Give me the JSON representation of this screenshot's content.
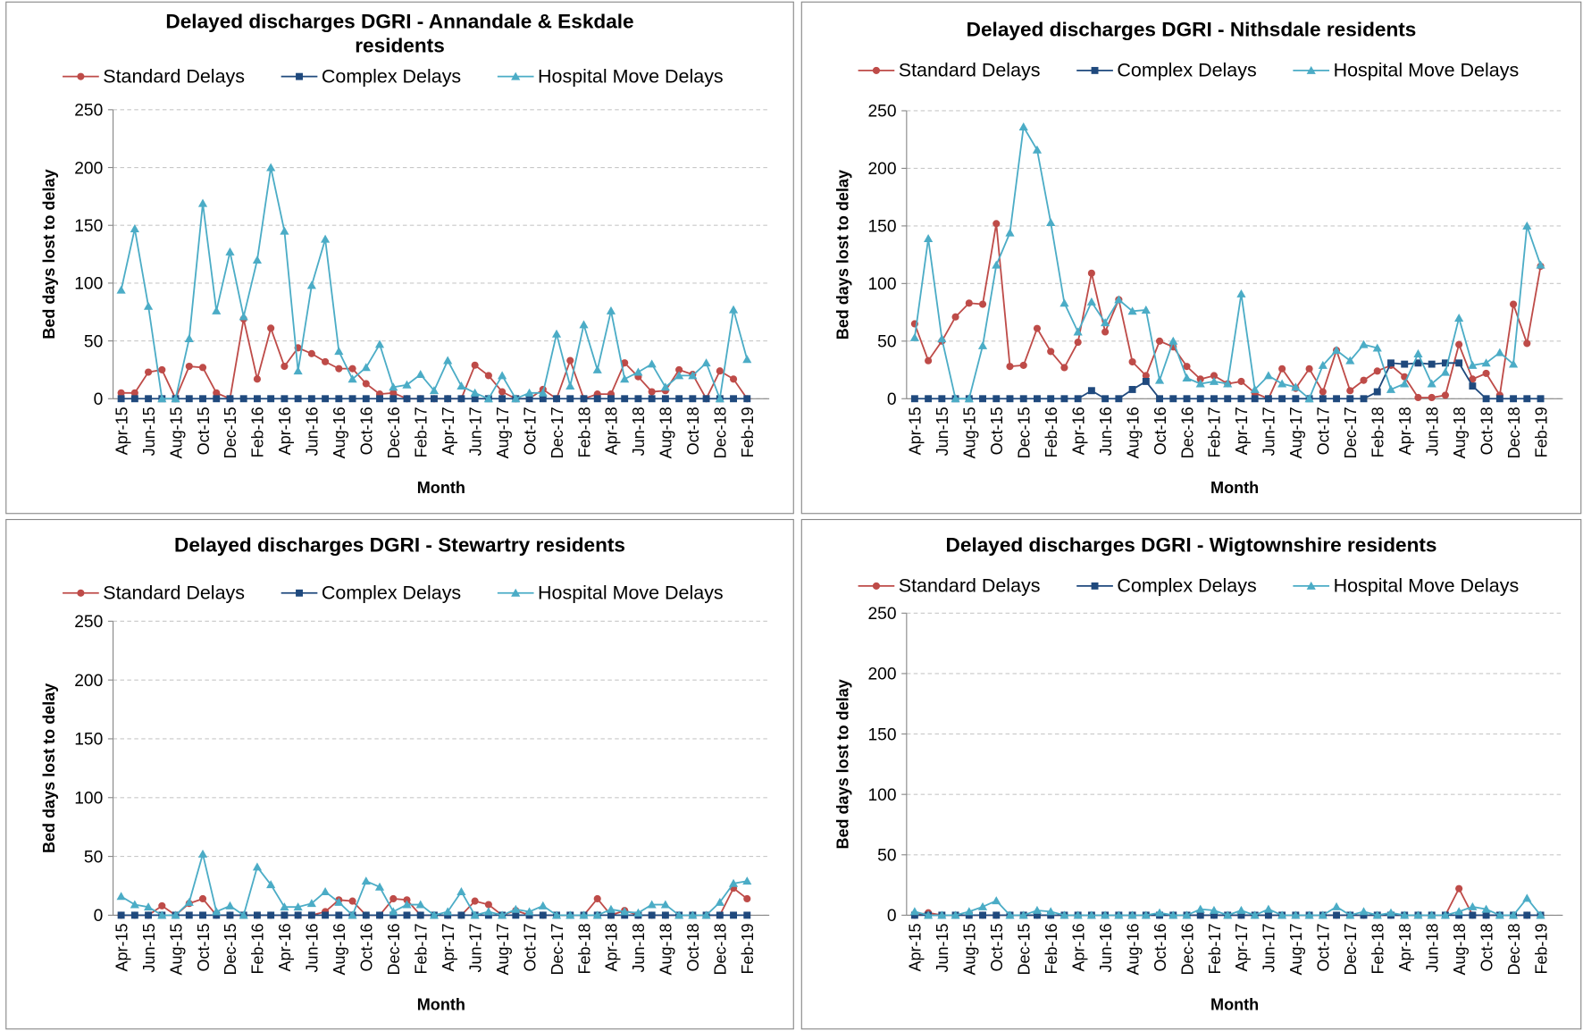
{
  "chart_data": [
    {
      "type": "line",
      "title": "Delayed discharges DGRI - Annandale & Eskdale residents",
      "x_label": "Month",
      "y_label": "Bed days lost to delay",
      "legend": "top",
      "grid": true,
      "categories": [
        "Apr-15",
        null,
        "Jun-15",
        null,
        "Aug-15",
        null,
        "Oct-15",
        null,
        "Dec-15",
        null,
        "Feb-16",
        null,
        "Apr-16",
        null,
        "Jun-16",
        null,
        "Aug-16",
        null,
        "Oct-16",
        null,
        "Dec-16",
        null,
        "Feb-17",
        null,
        "Apr-17",
        null,
        "Jun-17",
        null,
        "Aug-17",
        null,
        "Oct-17",
        null,
        "Dec-17",
        null,
        "Feb-18",
        null,
        "Apr-18",
        null,
        "Jun-18",
        null,
        "Aug-18",
        null,
        "Oct-18",
        null,
        "Dec-18",
        null,
        "Feb-19"
      ],
      "ylim": [
        0,
        250
      ],
      "yticks": [
        0,
        50,
        100,
        150,
        200,
        250
      ],
      "series": [
        {
          "name": "Standard Delays",
          "color": "#be4b48",
          "marker": "circle",
          "values": [
            5,
            5,
            23,
            25,
            0,
            28,
            27,
            5,
            0,
            69,
            17,
            61,
            28,
            44,
            39,
            32,
            26,
            26,
            13,
            4,
            5,
            0,
            0,
            0,
            0,
            0,
            29,
            20,
            6,
            0,
            0,
            8,
            0,
            33,
            0,
            4,
            4,
            31,
            19,
            6,
            7,
            25,
            21,
            0,
            24,
            17,
            0
          ]
        },
        {
          "name": "Complex Delays",
          "color": "#1f497d",
          "marker": "square",
          "values": [
            0,
            0,
            0,
            0,
            0,
            0,
            0,
            0,
            0,
            0,
            0,
            0,
            0,
            0,
            0,
            0,
            0,
            0,
            0,
            0,
            0,
            0,
            0,
            0,
            0,
            0,
            0,
            0,
            0,
            0,
            0,
            0,
            0,
            0,
            0,
            0,
            0,
            0,
            0,
            0,
            0,
            0,
            0,
            0,
            0,
            0,
            0
          ]
        },
        {
          "name": "Hospital Move Delays",
          "color": "#4bacc6",
          "marker": "triangle",
          "values": [
            94,
            147,
            80,
            0,
            0,
            52,
            169,
            76,
            127,
            71,
            120,
            200,
            145,
            24,
            98,
            138,
            41,
            17,
            27,
            47,
            10,
            12,
            21,
            7,
            33,
            11,
            5,
            0,
            20,
            0,
            5,
            5,
            56,
            11,
            64,
            25,
            76,
            17,
            23,
            30,
            10,
            20,
            20,
            31,
            0,
            77,
            34
          ]
        }
      ]
    },
    {
      "type": "line",
      "title": "Delayed discharges DGRI - Nithsdale residents",
      "x_label": "Month",
      "y_label": "Bed days lost to delay",
      "legend": "top",
      "grid": true,
      "categories": [
        "Apr-15",
        null,
        "Jun-15",
        null,
        "Aug-15",
        null,
        "Oct-15",
        null,
        "Dec-15",
        null,
        "Feb-16",
        null,
        "Apr-16",
        null,
        "Jun-16",
        null,
        "Aug-16",
        null,
        "Oct-16",
        null,
        "Dec-16",
        null,
        "Feb-17",
        null,
        "Apr-17",
        null,
        "Jun-17",
        null,
        "Aug-17",
        null,
        "Oct-17",
        null,
        "Dec-17",
        null,
        "Feb-18",
        null,
        "Apr-18",
        null,
        "Jun-18",
        null,
        "Aug-18",
        null,
        "Oct-18",
        null,
        "Dec-18",
        null,
        "Feb-19"
      ],
      "ylim": [
        0,
        250
      ],
      "yticks": [
        0,
        50,
        100,
        150,
        200,
        250
      ],
      "series": [
        {
          "name": "Standard Delays",
          "color": "#be4b48",
          "marker": "circle",
          "values": [
            65,
            33,
            50,
            71,
            83,
            82,
            152,
            28,
            29,
            61,
            41,
            27,
            49,
            109,
            58,
            86,
            32,
            20,
            50,
            45,
            28,
            17,
            20,
            13,
            15,
            5,
            0,
            26,
            9,
            26,
            6,
            42,
            7,
            16,
            24,
            29,
            19,
            1,
            1,
            3,
            47,
            17,
            22,
            3,
            82,
            48,
            115
          ]
        },
        {
          "name": "Complex Delays",
          "color": "#1f497d",
          "marker": "square",
          "values": [
            0,
            0,
            0,
            0,
            0,
            0,
            0,
            0,
            0,
            0,
            0,
            0,
            0,
            7,
            0,
            0,
            8,
            15,
            0,
            0,
            0,
            0,
            0,
            0,
            0,
            0,
            0,
            0,
            0,
            0,
            0,
            0,
            0,
            0,
            6,
            31,
            30,
            31,
            30,
            31,
            31,
            11,
            0,
            0,
            0,
            0,
            0
          ]
        },
        {
          "name": "Hospital Move Delays",
          "color": "#4bacc6",
          "marker": "triangle",
          "values": [
            53,
            139,
            52,
            0,
            0,
            46,
            116,
            144,
            236,
            216,
            153,
            83,
            58,
            84,
            66,
            86,
            76,
            77,
            16,
            50,
            18,
            13,
            15,
            13,
            91,
            8,
            20,
            13,
            10,
            0,
            29,
            42,
            33,
            47,
            44,
            8,
            13,
            39,
            13,
            23,
            70,
            29,
            31,
            40,
            30,
            150,
            116
          ]
        }
      ]
    },
    {
      "type": "line",
      "title": "Delayed discharges DGRI - Stewartry residents",
      "x_label": "Month",
      "y_label": "Bed days lost to delay",
      "legend": "top",
      "grid": true,
      "categories": [
        "Apr-15",
        null,
        "Jun-15",
        null,
        "Aug-15",
        null,
        "Oct-15",
        null,
        "Dec-15",
        null,
        "Feb-16",
        null,
        "Apr-16",
        null,
        "Jun-16",
        null,
        "Aug-16",
        null,
        "Oct-16",
        null,
        "Dec-16",
        null,
        "Feb-17",
        null,
        "Apr-17",
        null,
        "Jun-17",
        null,
        "Aug-17",
        null,
        "Oct-17",
        null,
        "Dec-17",
        null,
        "Feb-18",
        null,
        "Apr-18",
        null,
        "Jun-18",
        null,
        "Aug-18",
        null,
        "Oct-18",
        null,
        "Dec-18",
        null,
        "Feb-19"
      ],
      "ylim": [
        0,
        250
      ],
      "yticks": [
        0,
        50,
        100,
        150,
        200,
        250
      ],
      "series": [
        {
          "name": "Standard Delays",
          "color": "#be4b48",
          "marker": "circle",
          "values": [
            0,
            0,
            0,
            8,
            0,
            10,
            14,
            0,
            0,
            0,
            0,
            0,
            0,
            0,
            0,
            3,
            13,
            12,
            0,
            0,
            14,
            13,
            0,
            0,
            0,
            0,
            12,
            9,
            0,
            4,
            0,
            0,
            0,
            0,
            0,
            14,
            0,
            4,
            0,
            0,
            0,
            0,
            0,
            0,
            0,
            23,
            14
          ]
        },
        {
          "name": "Complex Delays",
          "color": "#1f497d",
          "marker": "square",
          "values": [
            0,
            0,
            0,
            0,
            0,
            0,
            0,
            0,
            0,
            0,
            0,
            0,
            0,
            0,
            0,
            0,
            0,
            0,
            0,
            0,
            0,
            0,
            0,
            0,
            0,
            0,
            0,
            0,
            0,
            0,
            0,
            0,
            0,
            0,
            0,
            0,
            0,
            0,
            0,
            0,
            0,
            0,
            0,
            0,
            0,
            0,
            0
          ]
        },
        {
          "name": "Hospital Move Delays",
          "color": "#4bacc6",
          "marker": "triangle",
          "values": [
            16,
            9,
            7,
            0,
            0,
            11,
            52,
            3,
            8,
            0,
            41,
            26,
            7,
            7,
            10,
            20,
            11,
            0,
            29,
            24,
            3,
            9,
            9,
            0,
            3,
            20,
            0,
            3,
            0,
            5,
            3,
            8,
            0,
            0,
            0,
            0,
            5,
            3,
            2,
            9,
            9,
            0,
            0,
            0,
            11,
            27,
            29
          ]
        }
      ]
    },
    {
      "type": "line",
      "title": "Delayed discharges DGRI - Wigtownshire residents",
      "x_label": "Month",
      "y_label": "Bed days lost to delay",
      "legend": "top",
      "grid": true,
      "categories": [
        "Apr-15",
        null,
        "Jun-15",
        null,
        "Aug-15",
        null,
        "Oct-15",
        null,
        "Dec-15",
        null,
        "Feb-16",
        null,
        "Apr-16",
        null,
        "Jun-16",
        null,
        "Aug-16",
        null,
        "Oct-16",
        null,
        "Dec-16",
        null,
        "Feb-17",
        null,
        "Apr-17",
        null,
        "Jun-17",
        null,
        "Aug-17",
        null,
        "Oct-17",
        null,
        "Dec-17",
        null,
        "Feb-18",
        null,
        "Apr-18",
        null,
        "Jun-18",
        null,
        "Aug-18",
        null,
        "Oct-18",
        null,
        "Dec-18",
        null,
        "Feb-19"
      ],
      "ylim": [
        0,
        250
      ],
      "yticks": [
        0,
        50,
        100,
        150,
        200,
        250
      ],
      "series": [
        {
          "name": "Standard Delays",
          "color": "#be4b48",
          "marker": "circle",
          "values": [
            0,
            2,
            0,
            0,
            0,
            0,
            0,
            0,
            0,
            0,
            0,
            0,
            0,
            0,
            0,
            0,
            0,
            0,
            0,
            0,
            0,
            0,
            0,
            0,
            0,
            0,
            0,
            0,
            0,
            0,
            0,
            0,
            0,
            0,
            0,
            0,
            0,
            0,
            0,
            0,
            22,
            0,
            0,
            0,
            0,
            0,
            0
          ]
        },
        {
          "name": "Complex Delays",
          "color": "#1f497d",
          "marker": "square",
          "values": [
            0,
            0,
            0,
            0,
            0,
            0,
            0,
            0,
            0,
            0,
            0,
            0,
            0,
            0,
            0,
            0,
            0,
            0,
            0,
            0,
            0,
            0,
            0,
            0,
            0,
            0,
            0,
            0,
            0,
            0,
            0,
            0,
            0,
            0,
            0,
            0,
            0,
            0,
            0,
            0,
            0,
            0,
            0,
            0,
            0,
            0,
            0
          ]
        },
        {
          "name": "Hospital Move Delays",
          "color": "#4bacc6",
          "marker": "triangle",
          "values": [
            3,
            0,
            0,
            0,
            3,
            7,
            12,
            0,
            0,
            4,
            3,
            0,
            0,
            0,
            0,
            0,
            0,
            0,
            2,
            0,
            0,
            5,
            4,
            0,
            4,
            0,
            5,
            0,
            0,
            0,
            0,
            7,
            0,
            3,
            0,
            2,
            0,
            0,
            0,
            0,
            3,
            7,
            5,
            0,
            0,
            14,
            0
          ]
        }
      ]
    }
  ]
}
